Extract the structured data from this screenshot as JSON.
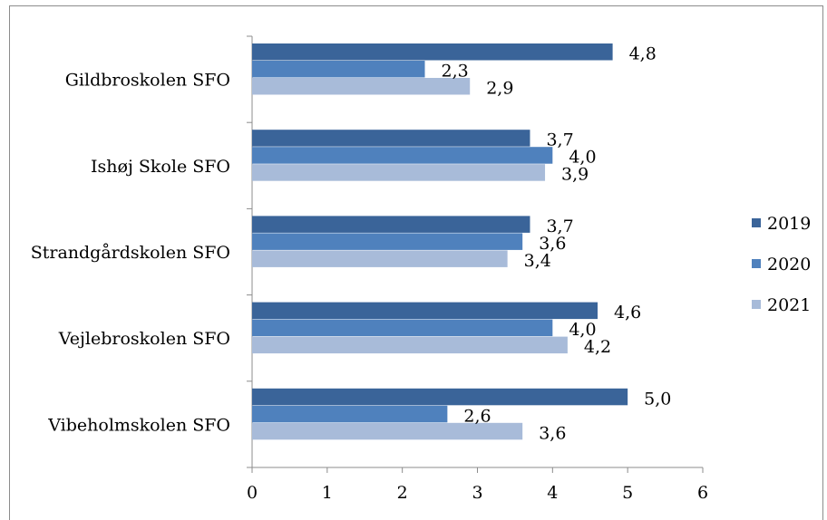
{
  "chart_data": {
    "type": "bar",
    "orientation": "horizontal",
    "categories": [
      "Gildbroskolen SFO",
      "Ishøj Skole SFO",
      "Strandgårdskolen SFO",
      "Vejlebroskolen SFO",
      "Vibeholmskolen SFO"
    ],
    "series": [
      {
        "name": "2019",
        "color": "#3a6499",
        "values": [
          4.8,
          3.7,
          3.7,
          4.6,
          5.0
        ],
        "labels": [
          "4,8",
          "3,7",
          "3,7",
          "4,6",
          "5,0"
        ]
      },
      {
        "name": "2020",
        "color": "#4f81bd",
        "values": [
          2.3,
          4.0,
          3.6,
          4.0,
          2.6
        ],
        "labels": [
          "2,3",
          "4,0",
          "3,6",
          "4,0",
          "2,6"
        ]
      },
      {
        "name": "2021",
        "color": "#a8bbd9",
        "values": [
          2.9,
          3.9,
          3.4,
          4.2,
          3.6
        ],
        "labels": [
          "2,9",
          "3,9",
          "3,4",
          "4,2",
          "3,6"
        ]
      }
    ],
    "xlim": [
      0,
      6
    ],
    "xticks": [
      "0",
      "1",
      "2",
      "3",
      "4",
      "5",
      "6"
    ],
    "grid": false,
    "legend_position": "right"
  }
}
